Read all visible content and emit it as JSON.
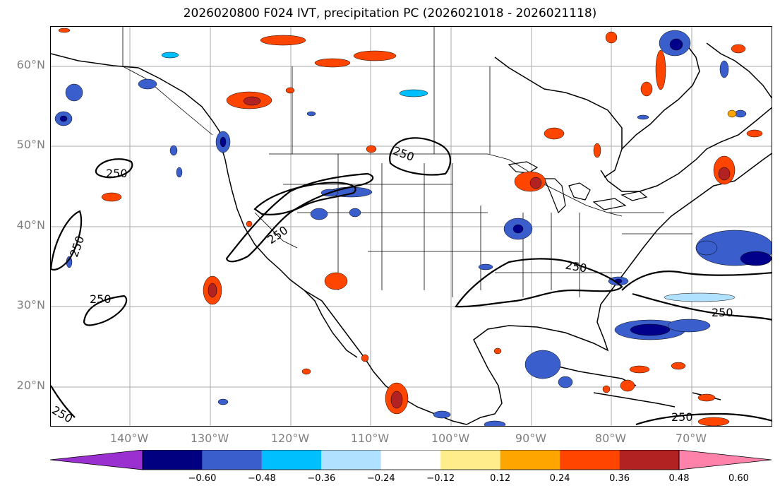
{
  "title": "2026020800 F024 IVT, precipitation PC (2026021018 - 2026021118)",
  "map": {
    "lat_ticks": [
      "60°N",
      "50°N",
      "40°N",
      "30°N",
      "20°N"
    ],
    "lon_ticks": [
      "140°W",
      "130°W",
      "120°W",
      "110°W",
      "100°W",
      "90°W",
      "80°W",
      "70°W"
    ],
    "ivt_contour_label": "250",
    "extent": {
      "lon_min": -150,
      "lon_max": -60,
      "lat_min": 15,
      "lat_max": 65
    }
  },
  "colorbar": {
    "labels": [
      "−0.60",
      "−0.48",
      "−0.36",
      "−0.24",
      "−0.12",
      "0.12",
      "0.24",
      "0.36",
      "0.48",
      "0.60"
    ],
    "colors": [
      "#9b30d0",
      "#000080",
      "#3a5fcd",
      "#00bfff",
      "#b0e2ff",
      "#ffffff",
      "#ffec8b",
      "#ffa500",
      "#ff4500",
      "#b22222",
      "#ff82ab"
    ]
  },
  "palette": {
    "dark_blue": "#00008b",
    "mid_blue": "#3a5fcd",
    "sky_blue": "#00bfff",
    "light_blue": "#b0e2ff",
    "yellow": "#ffec8b",
    "orange": "#ffa500",
    "red_orange": "#ff4500",
    "dark_red": "#b22222",
    "pink": "#ff82ab"
  }
}
